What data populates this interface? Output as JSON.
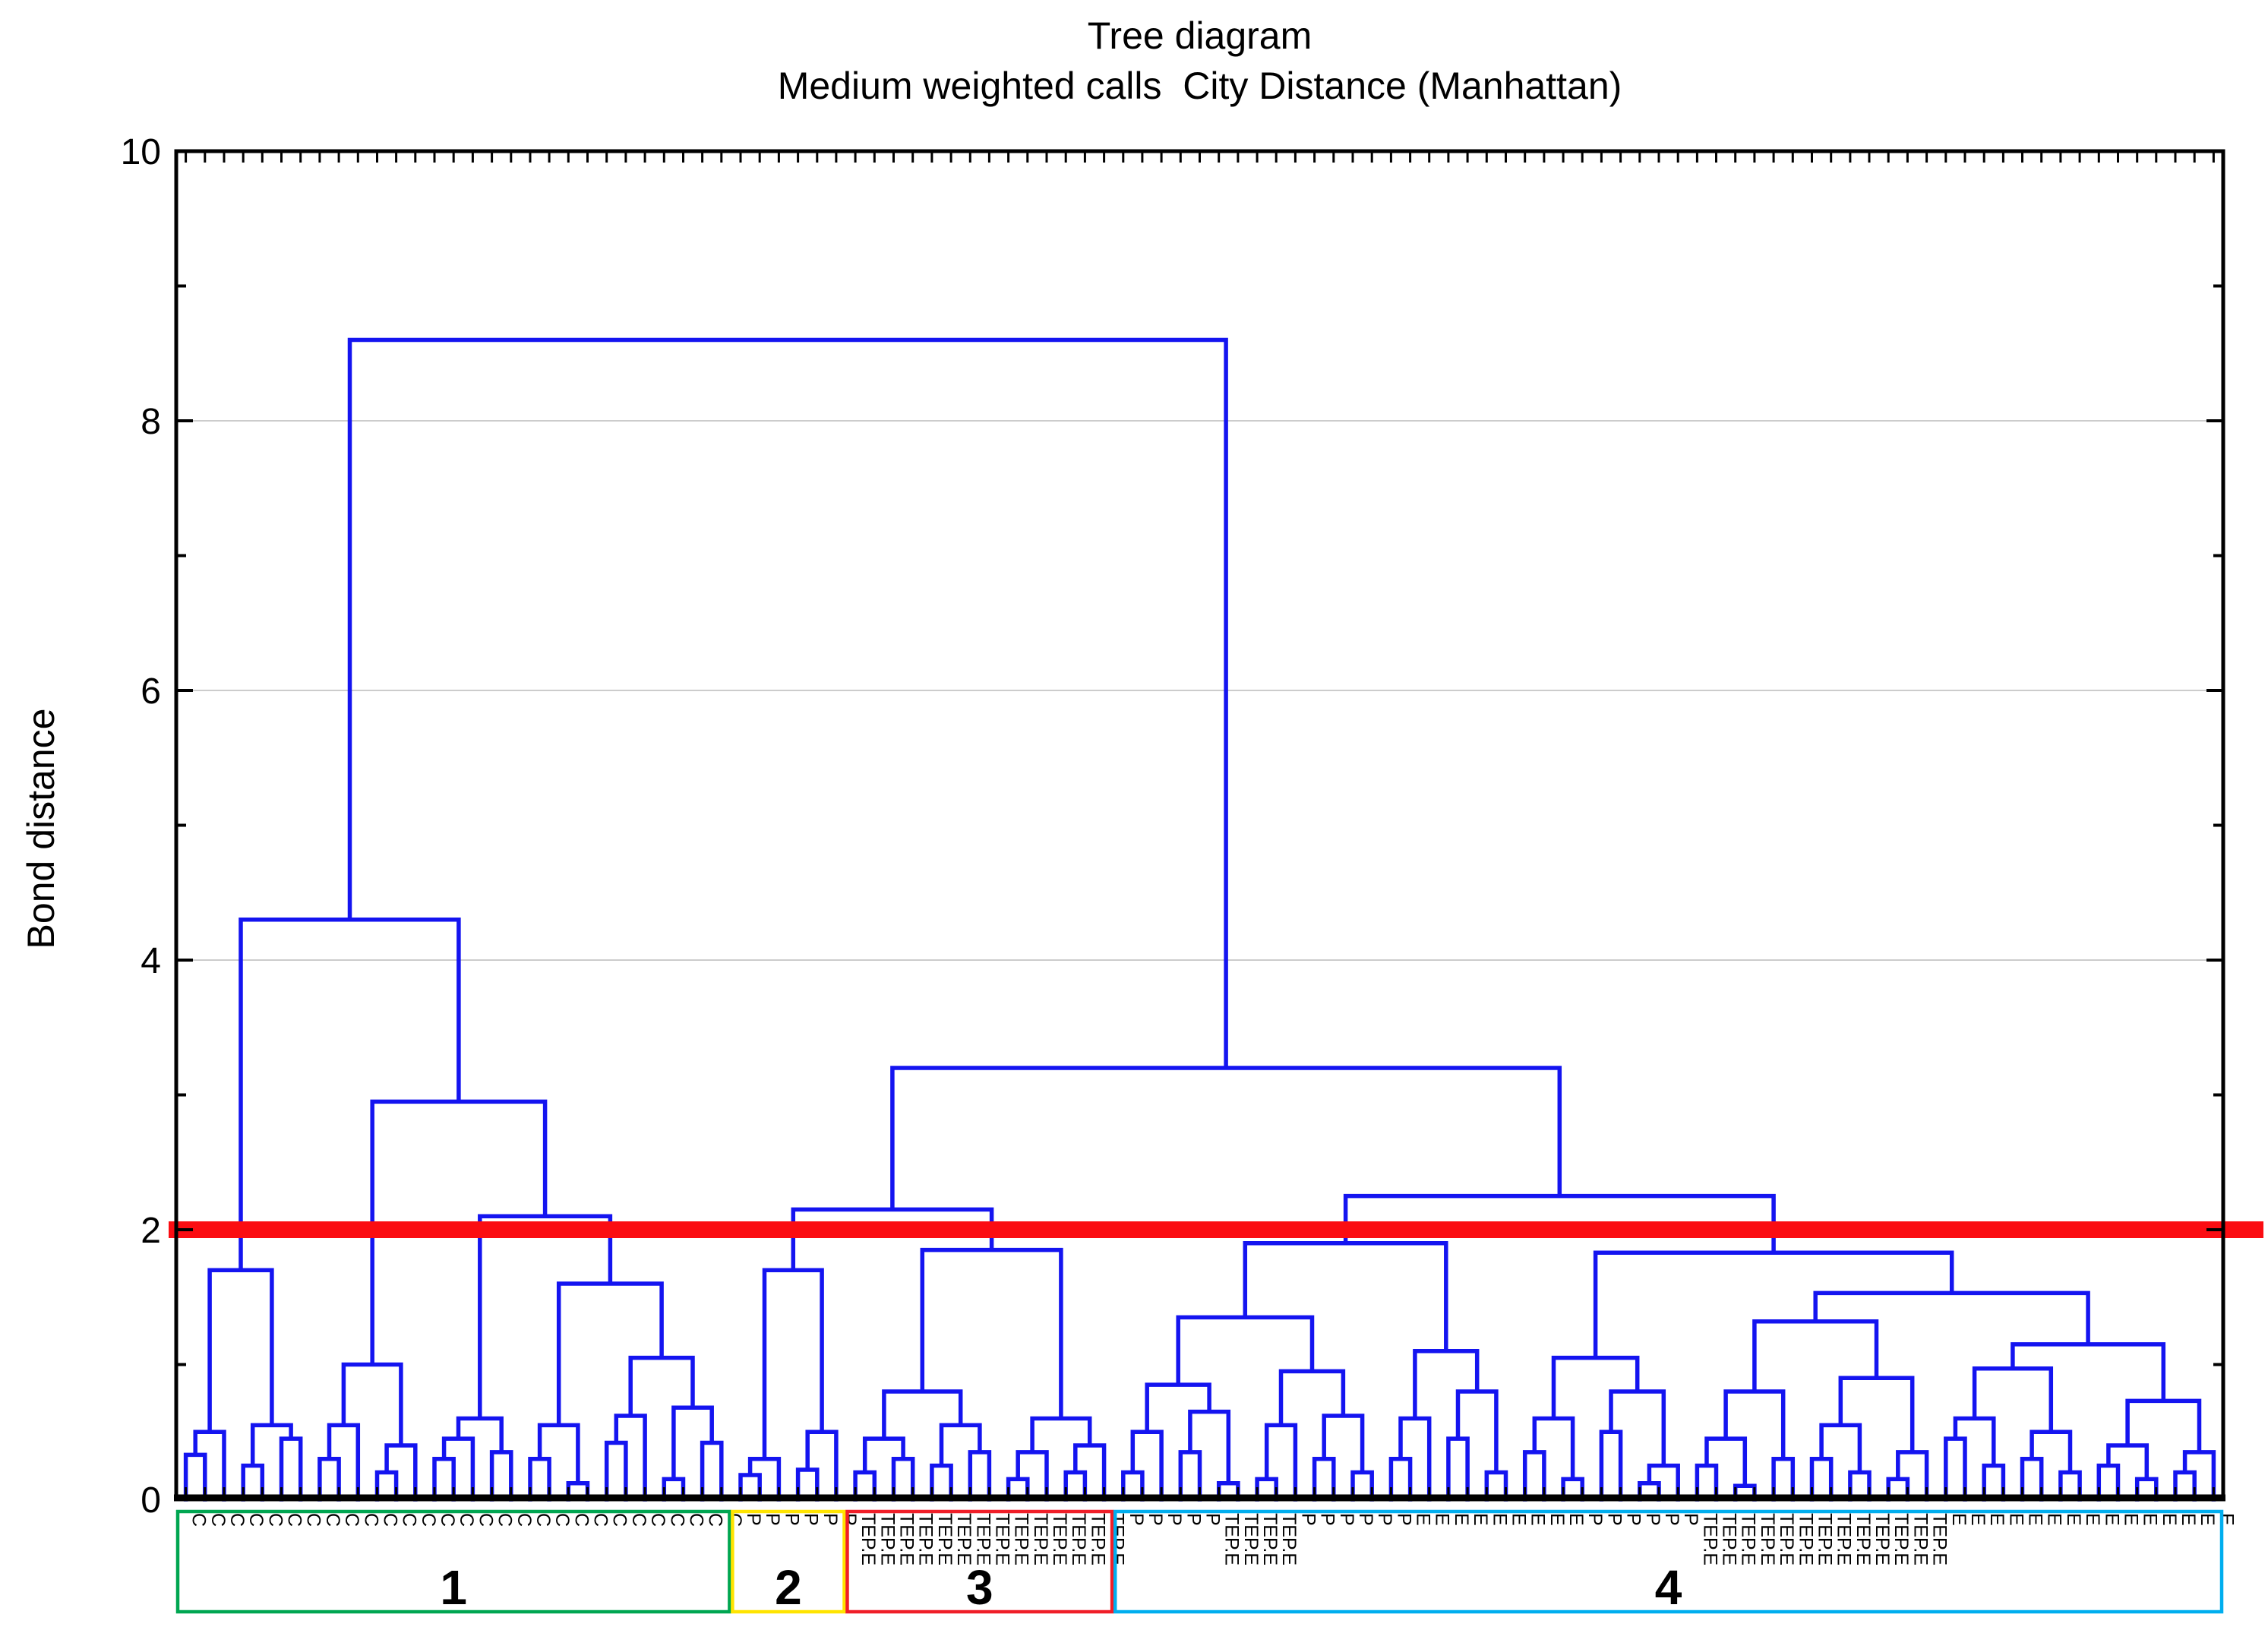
{
  "header": {
    "title_line1": "Tree diagram",
    "title_line2": "Medium weighted calls  City Distance (Manhattan)"
  },
  "y_axis": {
    "label": "Bond distance",
    "range": [
      0,
      10
    ],
    "major_ticks": [
      0,
      2,
      4,
      6,
      8,
      10
    ],
    "minor_ticks": [
      1,
      3,
      5,
      7,
      9
    ]
  },
  "threshold_line": {
    "value": 2.0,
    "color": "#fb0d12"
  },
  "colors": {
    "tree": "#1414f0",
    "grid": "#cccccc",
    "axis": "#000000",
    "background": "#ffffff"
  },
  "clusters": [
    {
      "label": "1",
      "color": "#00a651",
      "from": 0,
      "to": 28
    },
    {
      "label": "2",
      "color": "#ffe400",
      "from": 29,
      "to": 34
    },
    {
      "label": "3",
      "color": "#f01e28",
      "from": 35,
      "to": 48
    },
    {
      "label": "4",
      "color": "#00aeef",
      "from": 49,
      "to": 106
    }
  ],
  "chart_data": {
    "type": "dendrogram",
    "title": "Tree diagram",
    "subtitle": "Medium weighted calls  City Distance (Manhattan)",
    "ylabel": "Bond distance",
    "ylim": [
      0,
      10
    ],
    "yticks": [
      0,
      2,
      4,
      6,
      8,
      10
    ],
    "grid": "horizontal-light-gray",
    "cut_line_value": 2.0,
    "root_height": 8.6,
    "main_merge_heights": [
      8.6,
      4.3,
      3.2,
      2.95,
      2.25,
      2.15,
      2.1,
      1.9,
      1.85,
      1.83,
      1.7,
      1.6,
      1.53
    ],
    "leaf_label_map": {
      "C": "C",
      "P": "P",
      "E": "E",
      "T": "TEP.E"
    },
    "leaf_count": 107,
    "cluster_composition": [
      {
        "cluster": "1",
        "labels": "C x29"
      },
      {
        "cluster": "2",
        "labels": "P x6"
      },
      {
        "cluster": "3",
        "labels": "TEP.E x14"
      },
      {
        "cluster": "4",
        "labels": "P/E/TEP.E x58"
      }
    ],
    "tree": [
      8.6,
      [
        4.3,
        [
          1.7,
          [
            0.5,
            [
              0.33,
              "C",
              "C"
            ],
            "C"
          ],
          [
            0.55,
            [
              0.25,
              "C",
              "C"
            ],
            [
              0.45,
              "C",
              "C"
            ]
          ]
        ],
        [
          2.95,
          [
            1.0,
            [
              0.55,
              [
                0.3,
                "C",
                "C"
              ],
              "C"
            ],
            [
              0.4,
              [
                0.2,
                "C",
                "C"
              ],
              "C"
            ]
          ],
          [
            2.1,
            [
              0.6,
              [
                0.45,
                [
                  0.3,
                  "C",
                  "C"
                ],
                "C"
              ],
              [
                0.35,
                "C",
                "C"
              ]
            ],
            [
              1.6,
              [
                0.55,
                [
                  0.3,
                  "C",
                  "C"
                ],
                [
                  0.12,
                  "C",
                  "C"
                ]
              ],
              [
                1.05,
                [
                  0.62,
                  [
                    0.42,
                    "C",
                    "C"
                  ],
                  "C"
                ],
                [
                  0.68,
                  [
                    0.15,
                    "C",
                    "C"
                  ],
                  [
                    0.42,
                    "C",
                    "C"
                  ]
                ]
              ]
            ]
          ]
        ]
      ],
      [
        3.2,
        [
          2.15,
          [
            1.7,
            [
              0.3,
              [
                0.18,
                "P",
                "P"
              ],
              "P"
            ],
            [
              0.5,
              [
                0.22,
                "P",
                "P"
              ],
              "P"
            ]
          ],
          [
            1.85,
            [
              0.8,
              [
                0.45,
                [
                  0.2,
                  "T",
                  "T"
                ],
                [
                  0.3,
                  "T",
                  "T"
                ]
              ],
              [
                0.55,
                [
                  0.25,
                  "T",
                  "T"
                ],
                [
                  0.35,
                  "T",
                  "T"
                ]
              ]
            ],
            [
              0.6,
              [
                0.35,
                [
                  0.15,
                  "T",
                  "T"
                ],
                "T"
              ],
              [
                0.4,
                [
                  0.2,
                  "T",
                  "T"
                ],
                "T"
              ]
            ]
          ]
        ],
        [
          2.25,
          [
            1.9,
            [
              1.35,
              [
                0.85,
                [
                  0.5,
                  [
                    0.2,
                    "P",
                    "P"
                  ],
                  "P"
                ],
                [
                  0.65,
                  [
                    0.35,
                    "P",
                    "P"
                  ],
                  [
                    0.12,
                    "T",
                    "T"
                  ]
                ]
              ],
              [
                0.95,
                [
                  0.55,
                  [
                    0.15,
                    "T",
                    "T"
                  ],
                  "P"
                ],
                [
                  0.62,
                  [
                    0.3,
                    "P",
                    "P"
                  ],
                  [
                    0.2,
                    "P",
                    "P"
                  ]
                ]
              ]
            ],
            [
              1.1,
              [
                0.6,
                [
                  0.3,
                  "P",
                  "E"
                ],
                "E"
              ],
              [
                0.8,
                [
                  0.45,
                  "E",
                  "E"
                ],
                [
                  0.2,
                  "E",
                  "E"
                ]
              ]
            ]
          ],
          [
            1.83,
            [
              1.05,
              [
                0.6,
                [
                  0.35,
                  "E",
                  "E"
                ],
                [
                  0.15,
                  "E",
                  "P"
                ]
              ],
              [
                0.8,
                [
                  0.5,
                  "P",
                  "P"
                ],
                [
                  0.25,
                  [
                    0.12,
                    "P",
                    "P"
                  ],
                  "P"
                ]
              ]
            ],
            [
              1.53,
              [
                1.32,
                [
                  0.8,
                  [
                    0.45,
                    [
                      0.25,
                      "T",
                      "T"
                    ],
                    [
                      0.1,
                      "T",
                      "T"
                    ]
                  ],
                  [
                    0.3,
                    "T",
                    "T"
                  ]
                ],
                [
                  0.9,
                  [
                    0.55,
                    [
                      0.3,
                      "T",
                      "T"
                    ],
                    [
                      0.2,
                      "T",
                      "T"
                    ]
                  ],
                  [
                    0.35,
                    [
                      0.15,
                      "T",
                      "T"
                    ],
                    "T"
                  ]
                ]
              ],
              [
                1.15,
                [
                  0.97,
                  [
                    0.6,
                    [
                      0.45,
                      "E",
                      "E"
                    ],
                    [
                      0.25,
                      "E",
                      "E"
                    ]
                  ],
                  [
                    0.5,
                    [
                      0.3,
                      "E",
                      "E"
                    ],
                    [
                      0.2,
                      "E",
                      "E"
                    ]
                  ]
                ],
                [
                  0.73,
                  [
                    0.4,
                    [
                      0.25,
                      "E",
                      "E"
                    ],
                    [
                      0.15,
                      "E",
                      "E"
                    ]
                  ],
                  [
                    0.35,
                    [
                      0.2,
                      "E",
                      "E"
                    ],
                    "E"
                  ]
                ]
              ]
            ]
          ]
        ]
      ]
    ]
  }
}
